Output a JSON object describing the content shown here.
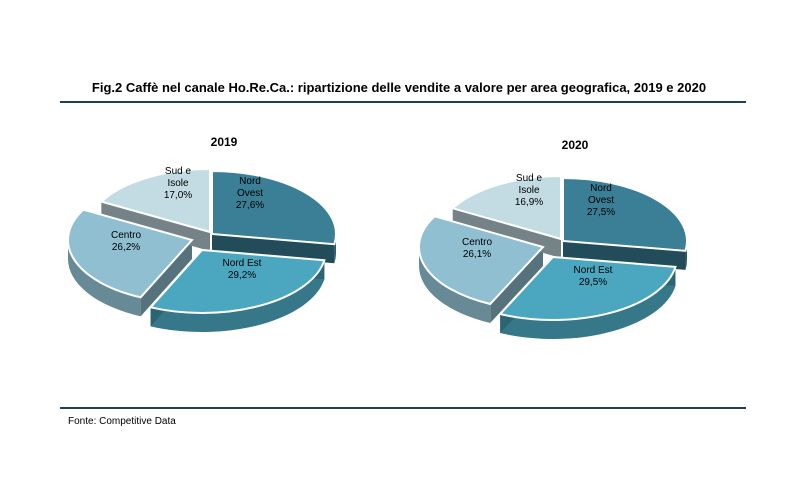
{
  "figure": {
    "title": "Fig.2 Caffè nel canale Ho.Re.Ca.: ripartizione delle vendite a valore per area geografica, 2019 e 2020",
    "source": "Fonte: Competitive Data"
  },
  "chart_data": [
    {
      "type": "pie",
      "title": "2019",
      "slices": [
        {
          "label": "Nord Ovest",
          "value": 27.6,
          "value_label": "27,6%",
          "color": "#3b7f96"
        },
        {
          "label": "Nord Est",
          "value": 29.2,
          "value_label": "29,2%",
          "color": "#4ba6c0"
        },
        {
          "label": "Centro",
          "value": 26.2,
          "value_label": "26,2%",
          "color": "#8fbfd0"
        },
        {
          "label": "Sud e Isole",
          "value": 17.0,
          "value_label": "17,0%",
          "color": "#c3dbe3"
        }
      ]
    },
    {
      "type": "pie",
      "title": "2020",
      "slices": [
        {
          "label": "Nord Ovest",
          "value": 27.5,
          "value_label": "27,5%",
          "color": "#3b7f96"
        },
        {
          "label": "Nord Est",
          "value": 29.5,
          "value_label": "29,5%",
          "color": "#4ba6c0"
        },
        {
          "label": "Centro",
          "value": 26.1,
          "value_label": "26,1%",
          "color": "#8fbfd0"
        },
        {
          "label": "Sud e Isole",
          "value": 16.9,
          "value_label": "16,9%",
          "color": "#c3dbe3"
        }
      ]
    }
  ]
}
